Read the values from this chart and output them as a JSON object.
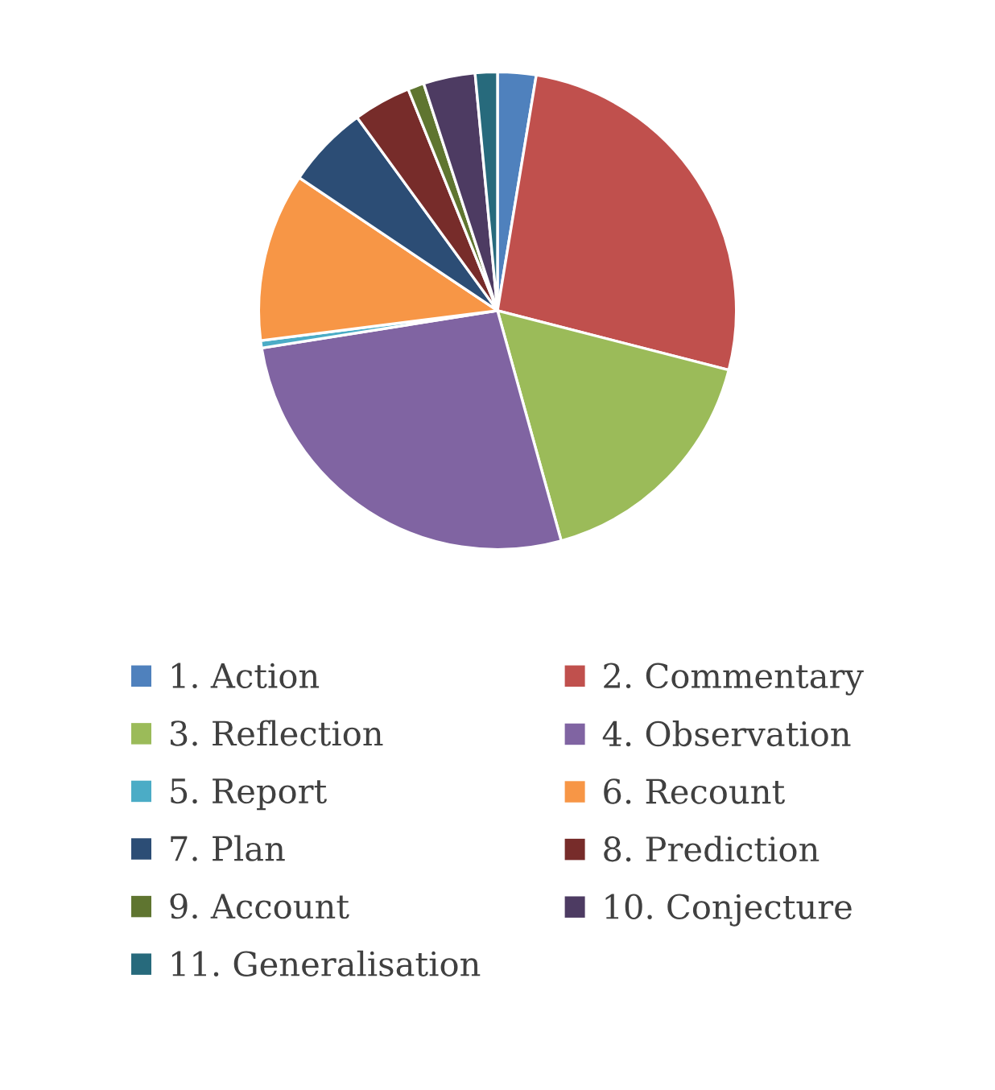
{
  "chart_data": {
    "type": "pie",
    "categories": [
      "1. Action",
      "2. Commentary",
      "3. Reflection",
      "4. Observation",
      "5. Report",
      "6. Recount",
      "7. Plan",
      "8. Prediction",
      "9. Account",
      "10. Conjecture",
      "11. Generalisation"
    ],
    "values": [
      2.6,
      26.4,
      16.7,
      26.8,
      0.5,
      11.4,
      5.6,
      3.9,
      1.1,
      3.5,
      1.5
    ],
    "colors": [
      "#4f81bd",
      "#c0504d",
      "#9bbb59",
      "#8064a2",
      "#4bacc6",
      "#f79646",
      "#2c4d75",
      "#772c2a",
      "#5f7530",
      "#4d3b62",
      "#276a7c"
    ],
    "legend": "bottom"
  }
}
